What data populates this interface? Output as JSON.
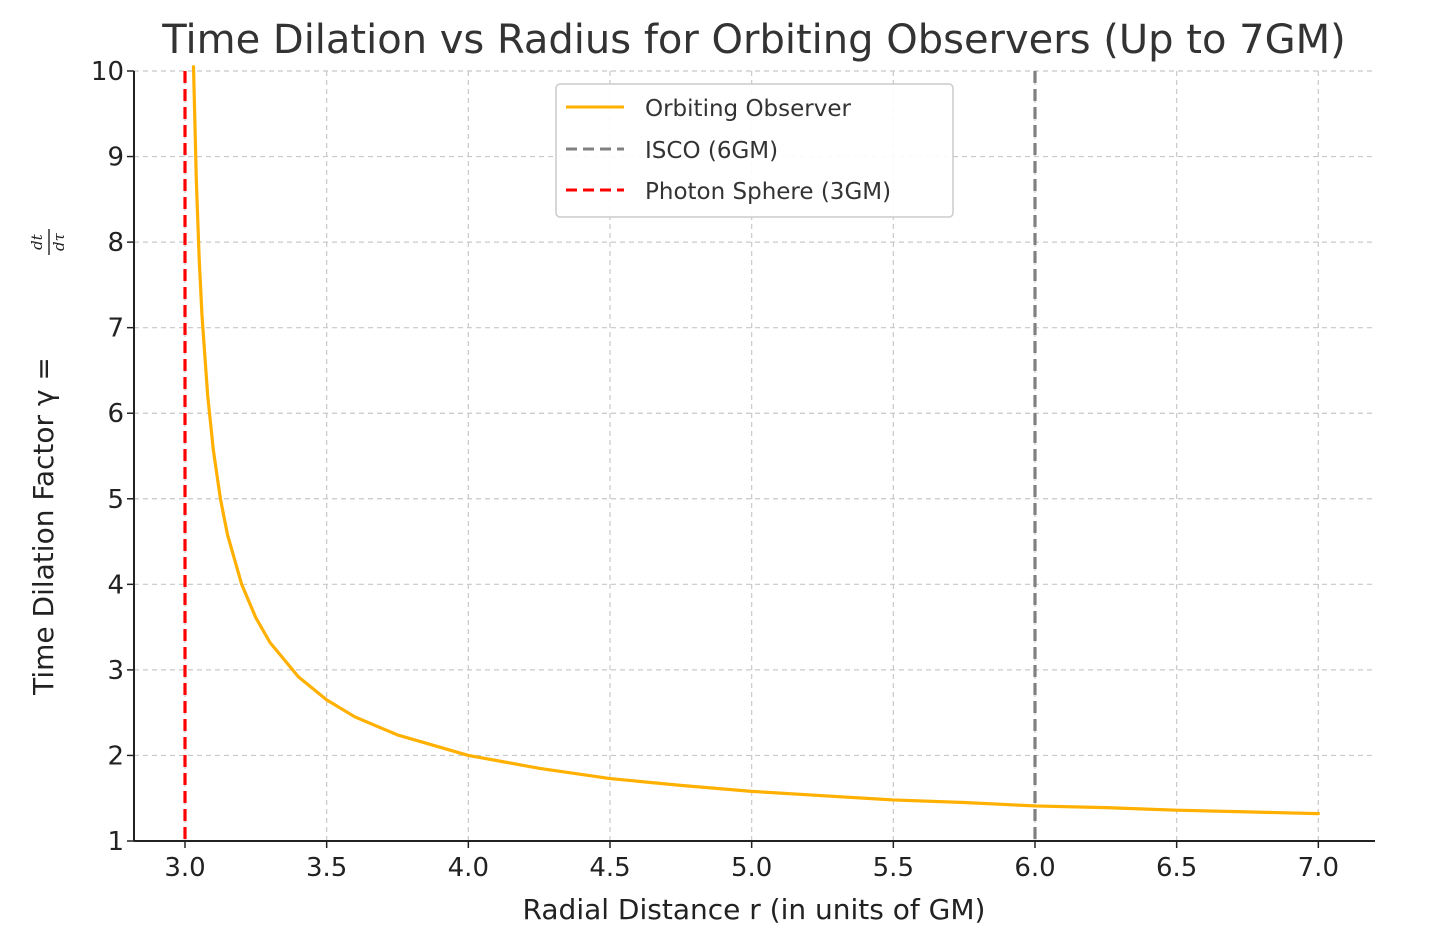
{
  "chart_data": {
    "type": "line",
    "title": "Time Dilation vs Radius for Orbiting Observers (Up to 7GM)",
    "xlabel": "Radial Distance r (in units of GM)",
    "ylabel_prefix": "Time Dilation Factor γ =",
    "ylabel_fraction": {
      "numerator": "dt",
      "denominator": "dτ"
    },
    "xlim": [
      2.82,
      7.2
    ],
    "ylim": [
      1,
      10
    ],
    "xticks": [
      3.0,
      3.5,
      4.0,
      4.5,
      5.0,
      5.5,
      6.0,
      6.5,
      7.0
    ],
    "xtick_labels": [
      "3.0",
      "3.5",
      "4.0",
      "4.5",
      "5.0",
      "5.5",
      "6.0",
      "6.5",
      "7.0"
    ],
    "yticks": [
      1,
      2,
      3,
      4,
      5,
      6,
      7,
      8,
      9,
      10
    ],
    "ytick_labels": [
      "1",
      "2",
      "3",
      "4",
      "5",
      "6",
      "7",
      "8",
      "9",
      "10"
    ],
    "grid": true,
    "legend_position": "top-center",
    "series": [
      {
        "name": "Orbiting Observer",
        "color": "#FFB000",
        "style": "solid",
        "x": [
          3.03,
          3.04,
          3.05,
          3.06,
          3.08,
          3.1,
          3.125,
          3.15,
          3.2,
          3.25,
          3.3,
          3.4,
          3.5,
          3.6,
          3.75,
          4.0,
          4.25,
          4.5,
          4.75,
          5.0,
          5.25,
          5.5,
          5.75,
          6.0,
          6.25,
          6.5,
          6.75,
          7.0
        ],
        "y": [
          10.05,
          8.72,
          7.81,
          7.14,
          6.21,
          5.57,
          5.0,
          4.58,
          4.0,
          3.61,
          3.32,
          2.92,
          2.65,
          2.45,
          2.24,
          2.0,
          1.85,
          1.73,
          1.65,
          1.58,
          1.53,
          1.48,
          1.45,
          1.41,
          1.39,
          1.36,
          1.34,
          1.32
        ]
      },
      {
        "name": "ISCO (6GM)",
        "color": "#808080",
        "style": "dashed",
        "vline_x": 6.0
      },
      {
        "name": "Photon Sphere (3GM)",
        "color": "#FF0000",
        "style": "dashed",
        "vline_x": 3.0
      }
    ]
  }
}
